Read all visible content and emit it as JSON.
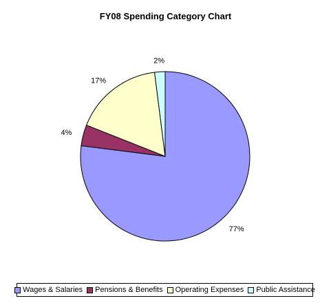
{
  "chart_data": {
    "type": "pie",
    "title": "FY08 Spending Category Chart",
    "categories": [
      "Wages & Salaries",
      "Pensions & Benefits",
      "Operating Expenses",
      "Public Assistance"
    ],
    "values": [
      77,
      4,
      17,
      2
    ],
    "labels": [
      "77%",
      "4%",
      "17%",
      "2%"
    ],
    "colors": [
      "#9999ff",
      "#993366",
      "#ffffcc",
      "#ccffff"
    ],
    "start_angle_deg": 0,
    "direction": "clockwise",
    "legend_position": "bottom"
  }
}
